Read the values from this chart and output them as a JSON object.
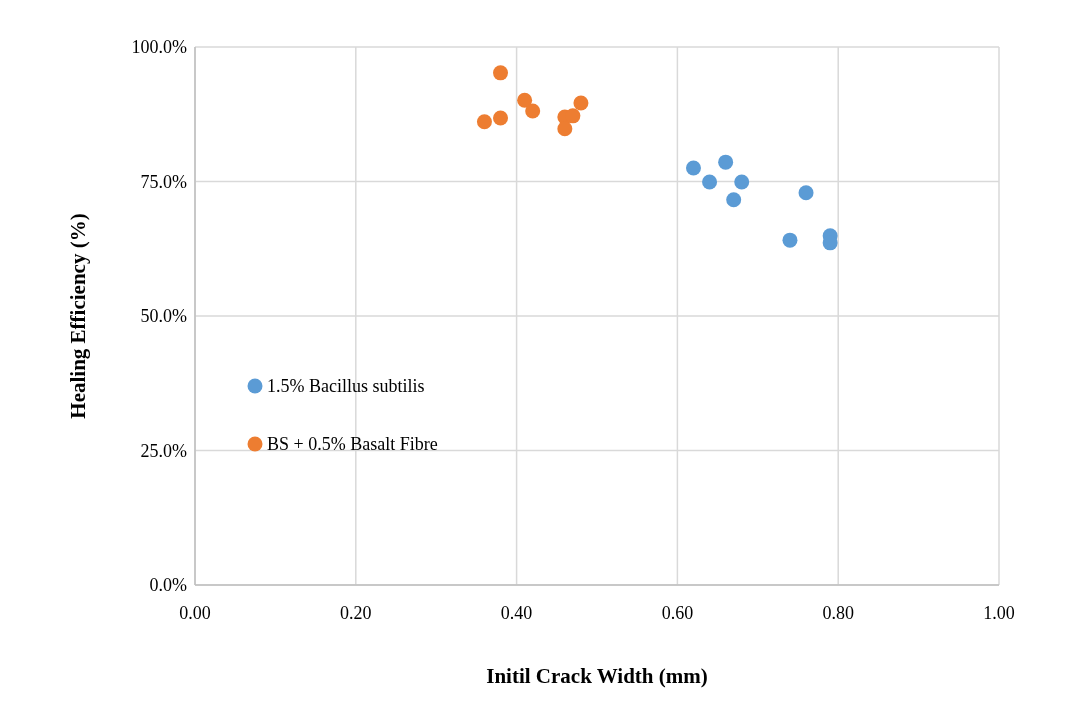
{
  "chart_data": {
    "type": "scatter",
    "xlabel": "Initil Crack Width (mm)",
    "ylabel": "Healing Efficiency (%)",
    "xlim": [
      0,
      1
    ],
    "xticks": [
      {
        "value": 0,
        "label": "0.00"
      },
      {
        "value": 0.2,
        "label": "0.20"
      },
      {
        "value": 0.4,
        "label": "0.40"
      },
      {
        "value": 0.6,
        "label": "0.60"
      },
      {
        "value": 0.8,
        "label": "0.80"
      },
      {
        "value": 1,
        "label": "1.00"
      }
    ],
    "ylim": [
      0,
      100
    ],
    "yticks": [
      {
        "value": 0,
        "label": "0.0%"
      },
      {
        "value": 25,
        "label": "25.0%"
      },
      {
        "value": 50,
        "label": "50.0%"
      },
      {
        "value": 75,
        "label": "75.0%"
      },
      {
        "value": 100,
        "label": "100.0%"
      }
    ],
    "grid": true,
    "legend": "left",
    "marker": "circle",
    "series": [
      {
        "name": "1.5% Bacillus subtilis",
        "color": "#5b9bd5",
        "x": [
          0.62,
          0.66,
          0.64,
          0.68,
          0.67,
          0.76,
          0.74,
          0.79,
          0.79
        ],
        "values": [
          77.5,
          78.6,
          74.9,
          74.9,
          71.6,
          72.9,
          64.1,
          64.9,
          63.6
        ]
      },
      {
        "name": "BS + 0.5% Basalt Fibre",
        "color": "#ed7d31",
        "x": [
          0.38,
          0.36,
          0.38,
          0.41,
          0.42,
          0.46,
          0.47,
          0.48,
          0.46
        ],
        "values": [
          95.2,
          86.1,
          86.8,
          90.1,
          88.1,
          87.0,
          87.2,
          89.6,
          84.8
        ]
      }
    ]
  }
}
